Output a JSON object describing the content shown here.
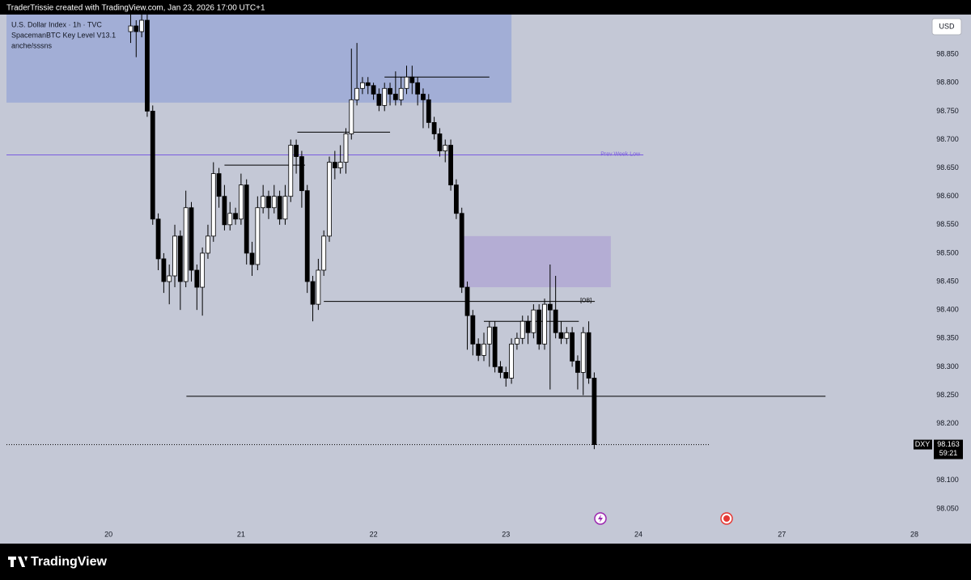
{
  "header": {
    "credit": "TraderTrissie created with TradingView.com, Jan 23, 2026 17:00 UTC+1"
  },
  "chart_data": {
    "type": "candlestick",
    "title": "U.S. Dollar Index · 1h · TVC",
    "indicators": [
      "SpacemanBTC Key Level V13.1",
      "anche/sssns"
    ],
    "currency": "USD",
    "up_color": "#ffffff",
    "down_color": "#000000",
    "x": [
      4,
      5,
      6,
      7,
      8,
      9,
      10,
      11,
      12,
      13,
      14,
      15,
      16,
      17,
      18,
      19,
      20,
      21,
      22,
      23,
      24,
      25,
      26,
      27,
      28,
      29,
      30,
      31,
      32,
      33,
      34,
      35,
      36,
      37,
      38,
      39,
      40,
      41,
      42,
      43,
      44,
      45,
      46,
      47,
      48,
      49,
      50,
      51,
      52,
      53,
      54,
      55,
      56,
      57,
      58,
      59,
      60,
      61,
      62,
      63,
      64,
      65,
      66,
      67,
      68,
      69,
      70,
      71,
      72,
      73,
      74,
      75,
      76,
      77,
      78,
      79,
      80,
      81,
      82,
      83,
      84,
      85,
      86,
      87,
      88
    ],
    "open": [
      98.89,
      98.9,
      98.89,
      98.91,
      98.75,
      98.56,
      98.49,
      98.45,
      98.46,
      98.53,
      98.45,
      98.58,
      98.47,
      98.44,
      98.5,
      98.53,
      98.64,
      98.6,
      98.55,
      98.57,
      98.56,
      98.62,
      98.5,
      98.48,
      98.58,
      98.6,
      98.58,
      98.6,
      98.56,
      98.6,
      98.69,
      98.67,
      98.61,
      98.45,
      98.41,
      98.47,
      98.53,
      98.66,
      98.65,
      98.66,
      98.71,
      98.77,
      98.79,
      98.8,
      98.795,
      98.78,
      98.76,
      98.79,
      98.78,
      98.77,
      98.79,
      98.81,
      98.8,
      98.78,
      98.77,
      98.73,
      98.71,
      98.68,
      98.69,
      98.62,
      98.57,
      98.44,
      98.39,
      98.34,
      98.32,
      98.34,
      98.37,
      98.3,
      98.29,
      98.28,
      98.34,
      98.35,
      98.38,
      98.36,
      98.4,
      98.34,
      98.41,
      98.4,
      98.36,
      98.35,
      98.36,
      98.31,
      98.29,
      98.36,
      98.28
    ],
    "high": [
      98.92,
      98.91,
      98.92,
      98.92,
      98.76,
      98.57,
      98.5,
      98.48,
      98.55,
      98.54,
      98.61,
      98.59,
      98.48,
      98.51,
      98.55,
      98.66,
      98.65,
      98.62,
      98.59,
      98.58,
      98.64,
      98.63,
      98.52,
      98.6,
      98.62,
      98.61,
      98.62,
      98.61,
      98.62,
      98.7,
      98.7,
      98.68,
      98.62,
      98.46,
      98.49,
      98.54,
      98.67,
      98.68,
      98.69,
      98.72,
      98.86,
      98.87,
      98.81,
      98.81,
      98.8,
      98.79,
      98.8,
      98.8,
      98.82,
      98.81,
      98.83,
      98.83,
      98.81,
      98.79,
      98.78,
      98.74,
      98.72,
      98.7,
      98.7,
      98.63,
      98.58,
      98.45,
      98.4,
      98.35,
      98.36,
      98.38,
      98.38,
      98.31,
      98.3,
      98.35,
      98.36,
      98.39,
      98.39,
      98.41,
      98.41,
      98.42,
      98.48,
      98.46,
      98.38,
      98.37,
      98.37,
      98.32,
      98.37,
      98.38,
      98.29
    ],
    "low": [
      98.87,
      98.845,
      98.88,
      98.74,
      98.55,
      98.47,
      98.43,
      98.41,
      98.44,
      98.4,
      98.44,
      98.45,
      98.4,
      98.39,
      98.49,
      98.52,
      98.58,
      98.54,
      98.54,
      98.55,
      98.55,
      98.48,
      98.46,
      98.47,
      98.57,
      98.56,
      98.57,
      98.55,
      98.55,
      98.59,
      98.64,
      98.58,
      98.43,
      98.38,
      98.4,
      98.46,
      98.52,
      98.63,
      98.64,
      98.64,
      98.7,
      98.76,
      98.78,
      98.78,
      98.77,
      98.75,
      98.75,
      98.76,
      98.76,
      98.76,
      98.78,
      98.78,
      98.76,
      98.72,
      98.72,
      98.7,
      98.67,
      98.66,
      98.61,
      98.56,
      98.43,
      98.33,
      98.32,
      98.31,
      98.31,
      98.3,
      98.29,
      98.28,
      98.265,
      98.27,
      98.33,
      98.34,
      98.34,
      98.35,
      98.33,
      98.33,
      98.26,
      98.35,
      98.34,
      98.34,
      98.3,
      98.26,
      98.25,
      98.27,
      98.155
    ],
    "close": [
      98.9,
      98.89,
      98.91,
      98.75,
      98.56,
      98.49,
      98.45,
      98.46,
      98.53,
      98.45,
      98.58,
      98.47,
      98.44,
      98.5,
      98.53,
      98.64,
      98.6,
      98.55,
      98.57,
      98.56,
      98.62,
      98.5,
      98.48,
      98.58,
      98.6,
      98.58,
      98.6,
      98.56,
      98.6,
      98.69,
      98.67,
      98.61,
      98.45,
      98.41,
      98.47,
      98.53,
      98.66,
      98.65,
      98.66,
      98.71,
      98.77,
      98.79,
      98.8,
      98.795,
      98.78,
      98.76,
      98.79,
      98.78,
      98.77,
      98.79,
      98.81,
      98.8,
      98.78,
      98.77,
      98.73,
      98.71,
      98.68,
      98.69,
      98.62,
      98.57,
      98.44,
      98.39,
      98.34,
      98.32,
      98.34,
      98.37,
      98.3,
      98.29,
      98.28,
      98.34,
      98.35,
      98.38,
      98.36,
      98.4,
      98.34,
      98.41,
      98.4,
      98.36,
      98.35,
      98.36,
      98.31,
      98.29,
      98.36,
      98.28,
      98.163
    ],
    "xlim": [
      -18.5,
      146
    ],
    "xticks": [
      {
        "value": 0,
        "label": "20"
      },
      {
        "value": 24,
        "label": "21"
      },
      {
        "value": 48,
        "label": "22"
      },
      {
        "value": 72,
        "label": "23"
      },
      {
        "value": 96,
        "label": "24"
      },
      {
        "value": 122,
        "label": "27"
      },
      {
        "value": 146,
        "label": "28"
      }
    ],
    "ylim": [
      98.02,
      98.92
    ],
    "yticks": [
      {
        "value": 98.85,
        "label": "98.850"
      },
      {
        "value": 98.8,
        "label": "98.800"
      },
      {
        "value": 98.75,
        "label": "98.750"
      },
      {
        "value": 98.7,
        "label": "98.700"
      },
      {
        "value": 98.65,
        "label": "98.650"
      },
      {
        "value": 98.6,
        "label": "98.600"
      },
      {
        "value": 98.55,
        "label": "98.550"
      },
      {
        "value": 98.5,
        "label": "98.500"
      },
      {
        "value": 98.45,
        "label": "98.450"
      },
      {
        "value": 98.4,
        "label": "98.400"
      },
      {
        "value": 98.35,
        "label": "98.350"
      },
      {
        "value": 98.3,
        "label": "98.300"
      },
      {
        "value": 98.25,
        "label": "98.250"
      },
      {
        "value": 98.2,
        "label": "98.200"
      },
      {
        "value": 98.15,
        "label": "98.150"
      },
      {
        "value": 98.1,
        "label": "98.100"
      },
      {
        "value": 98.05,
        "label": "98.050"
      }
    ],
    "zones": [
      {
        "start": -18.5,
        "end": 73,
        "low": 98.765,
        "high": 98.92,
        "color": "#9eabd6"
      },
      {
        "start": 64,
        "end": 91,
        "low": 98.44,
        "high": 98.53,
        "color": "#b3aad4"
      }
    ],
    "levels": [
      {
        "price": 98.673,
        "start": -18.5,
        "end": 96.9,
        "color": "#7a5ce0",
        "label": "Prev Week Low"
      },
      {
        "price": 98.415,
        "start": 39,
        "end": 88.1,
        "color": "#000000",
        "label": "[OB]"
      },
      {
        "price": 98.81,
        "start": 50,
        "end": 69,
        "color": "#000000"
      },
      {
        "price": 98.713,
        "start": 34.2,
        "end": 51,
        "color": "#000000"
      },
      {
        "price": 98.655,
        "start": 21,
        "end": 35.6,
        "color": "#000000"
      },
      {
        "price": 98.38,
        "start": 68,
        "end": 85.2,
        "color": "#000000"
      },
      {
        "price": 98.248,
        "start": 14.1,
        "end": 129.9,
        "color": "#000000"
      }
    ],
    "last_price": {
      "symbol": "DXY",
      "value": 98.163,
      "countdown": "59:21"
    }
  },
  "footer": {
    "brand": "TradingView"
  }
}
